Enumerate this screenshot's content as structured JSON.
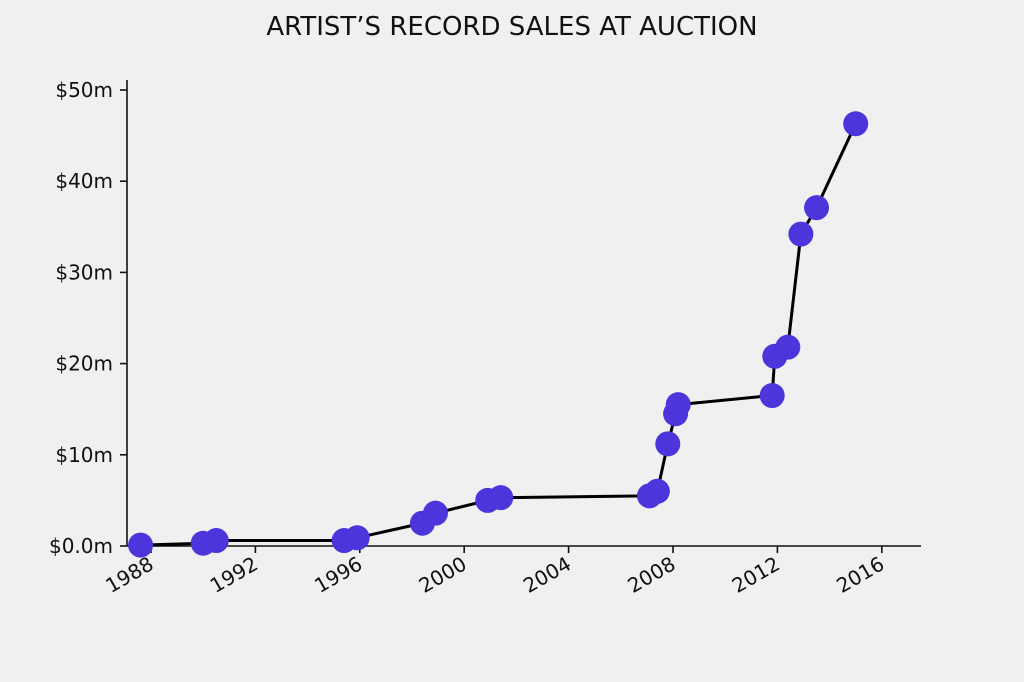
{
  "chart_data": {
    "type": "line",
    "title": "ARTIST’S RECORD SALES AT AUCTION",
    "xlabel": "",
    "ylabel": "",
    "xlim": [
      1987.0,
      2016.6
    ],
    "ylim": [
      0,
      50
    ],
    "x_ticks": [
      1988,
      1992,
      1996,
      2000,
      2004,
      2008,
      2012,
      2016
    ],
    "x_tick_labels": [
      "1988",
      "1992",
      "1996",
      "2000",
      "2004",
      "2008",
      "2012",
      "2016"
    ],
    "y_ticks": [
      0,
      10,
      20,
      30,
      40,
      50
    ],
    "y_tick_labels": [
      "$0.0m",
      "$10m",
      "$20m",
      "$30m",
      "$40m",
      "$50m"
    ],
    "grid": false,
    "colors": {
      "marker": "#4b35db",
      "line": "#000000",
      "axis": "#111111",
      "background": "#f0f0f0"
    },
    "series": [
      {
        "x": [
          1987.6,
          1990.0,
          1990.5,
          1995.4,
          1995.9,
          1998.4,
          1998.9,
          2000.9,
          2001.4,
          2007.1,
          2007.4,
          2007.8,
          2008.1,
          2008.2,
          2011.8,
          2011.9,
          2012.4,
          2012.9,
          2013.5,
          2015.0
        ],
        "y": [
          0.1,
          0.3,
          0.6,
          0.6,
          0.9,
          2.5,
          3.6,
          5.0,
          5.3,
          5.5,
          6.0,
          11.2,
          14.5,
          15.5,
          16.5,
          20.8,
          21.8,
          34.2,
          37.1,
          46.3
        ]
      }
    ]
  }
}
